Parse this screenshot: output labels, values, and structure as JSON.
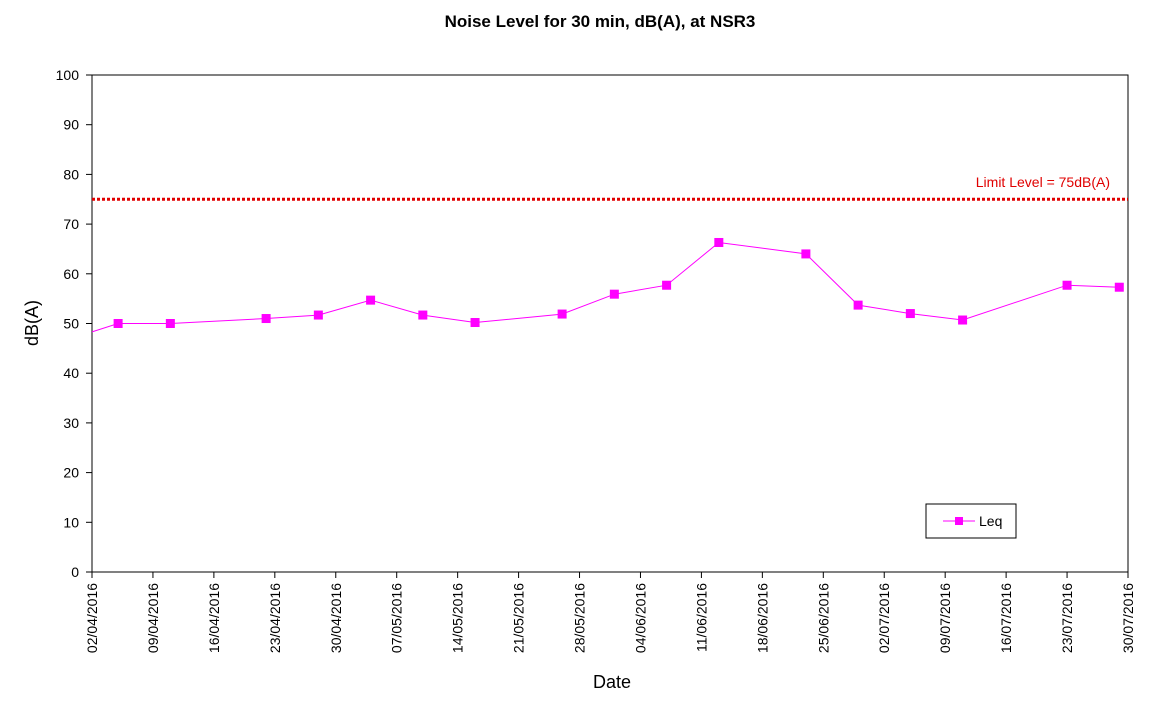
{
  "chart_data": {
    "type": "line",
    "title": "Noise Level for 30 min, dB(A), at NSR3",
    "xlabel": "Date",
    "ylabel": "dB(A)",
    "xlim": [
      "2016-04-02",
      "2016-07-30"
    ],
    "ylim": [
      0,
      100
    ],
    "y_ticks": [
      0,
      10,
      20,
      30,
      40,
      50,
      60,
      70,
      80,
      90,
      100
    ],
    "x_ticks": [
      "02/04/2016",
      "09/04/2016",
      "16/04/2016",
      "23/04/2016",
      "30/04/2016",
      "07/05/2016",
      "14/05/2016",
      "21/05/2016",
      "28/05/2016",
      "04/06/2016",
      "11/06/2016",
      "18/06/2016",
      "25/06/2016",
      "02/07/2016",
      "09/07/2016",
      "16/07/2016",
      "23/07/2016",
      "30/07/2016"
    ],
    "grid": false,
    "legend_position": "bottom-right",
    "series": [
      {
        "name": "Leq",
        "color": "#ff00ff",
        "marker": "square",
        "x": [
          "2016-04-05",
          "2016-04-11",
          "2016-04-22",
          "2016-04-28",
          "2016-05-04",
          "2016-05-10",
          "2016-05-16",
          "2016-05-26",
          "2016-06-01",
          "2016-06-07",
          "2016-06-13",
          "2016-06-23",
          "2016-06-29",
          "2016-07-05",
          "2016-07-11",
          "2016-07-23",
          "2016-07-29"
        ],
        "y": [
          50.0,
          50.0,
          51.0,
          51.7,
          54.7,
          51.7,
          50.2,
          51.9,
          55.9,
          57.7,
          66.3,
          64.0,
          53.7,
          52.0,
          50.7,
          57.7,
          57.3
        ],
        "start_value": 48.3
      }
    ],
    "limit_line": {
      "value": 75,
      "label": "Limit Level = 75dB(A)",
      "color": "#e00000",
      "style": "dotted"
    }
  }
}
